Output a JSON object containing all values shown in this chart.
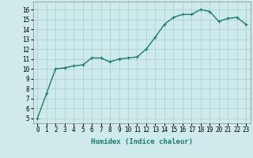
{
  "x": [
    0,
    1,
    2,
    3,
    4,
    5,
    6,
    7,
    8,
    9,
    10,
    11,
    12,
    13,
    14,
    15,
    16,
    17,
    18,
    19,
    20,
    21,
    22,
    23
  ],
  "y": [
    5.0,
    7.5,
    10.0,
    10.1,
    10.3,
    10.4,
    11.1,
    11.1,
    10.7,
    11.0,
    11.1,
    11.2,
    12.0,
    13.2,
    14.5,
    15.2,
    15.5,
    15.5,
    16.0,
    15.8,
    14.8,
    15.1,
    15.2,
    14.5
  ],
  "line_color": "#1a7a6e",
  "marker": "+",
  "marker_size": 3,
  "line_width": 1.0,
  "xlabel": "Humidex (Indice chaleur)",
  "xlim": [
    -0.5,
    23.5
  ],
  "ylim": [
    4.5,
    16.8
  ],
  "yticks": [
    5,
    6,
    7,
    8,
    9,
    10,
    11,
    12,
    13,
    14,
    15,
    16
  ],
  "xticks": [
    0,
    1,
    2,
    3,
    4,
    5,
    6,
    7,
    8,
    9,
    10,
    11,
    12,
    13,
    14,
    15,
    16,
    17,
    18,
    19,
    20,
    21,
    22,
    23
  ],
  "bg_color": "#ceeaea",
  "grid_color": "#aacece",
  "tick_label_fontsize": 5.5,
  "xlabel_fontsize": 6.5
}
